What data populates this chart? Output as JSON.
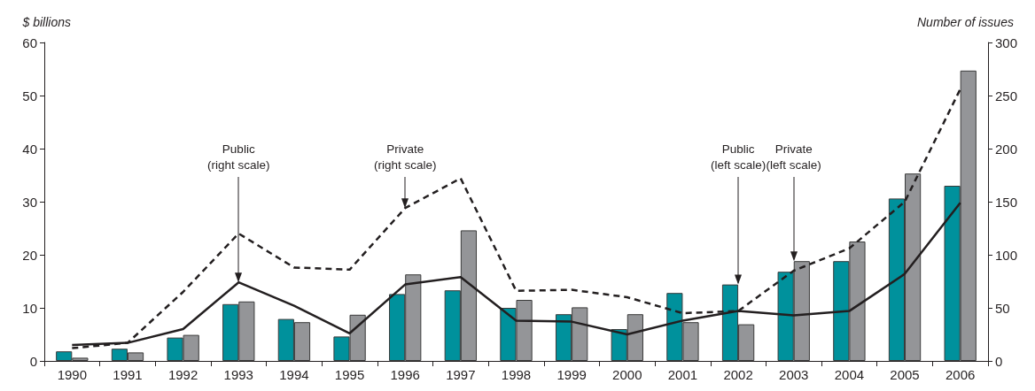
{
  "chart_data": {
    "type": "bar",
    "ylabel": "$ billions",
    "y2label": "Number of issues",
    "categories": [
      "1990",
      "1991",
      "1992",
      "1993",
      "1994",
      "1995",
      "1996",
      "1997",
      "1998",
      "1999",
      "2000",
      "2001",
      "2002",
      "2003",
      "2004",
      "2005",
      "2006"
    ],
    "series": [
      {
        "color": "#00919c",
        "values": [
          1.8,
          2.3,
          4.4,
          10.7,
          7.9,
          4.6,
          12.6,
          13.3,
          10.0,
          8.8,
          6.0,
          12.8,
          14.4,
          16.8,
          18.8,
          30.6,
          33.0
        ]
      },
      {
        "color": "#949598",
        "values": [
          0.6,
          1.6,
          4.9,
          11.2,
          7.3,
          8.7,
          16.3,
          24.6,
          11.5,
          10.1,
          8.8,
          7.3,
          6.9,
          18.8,
          22.5,
          35.3,
          54.7
        ]
      },
      {
        "type": "line",
        "axis": "y2",
        "color": "#231f20",
        "line_style": "solid",
        "values": [
          15,
          17,
          30,
          74,
          52,
          26,
          72,
          79,
          38,
          37,
          25,
          38,
          47,
          43,
          47,
          82,
          149
        ]
      },
      {
        "type": "line",
        "axis": "y2",
        "color": "#231f20",
        "line_style": "dashed",
        "values": [
          12,
          17,
          65,
          120,
          88,
          86,
          144,
          172,
          66,
          67,
          60,
          45,
          47,
          85,
          106,
          150,
          256
        ]
      }
    ],
    "ylim": [
      0,
      60
    ],
    "yticks": [
      0,
      10,
      20,
      30,
      40,
      50,
      60
    ],
    "y2lim": [
      0,
      300
    ],
    "y2ticks": [
      0,
      50,
      100,
      150,
      200,
      250,
      300
    ],
    "grid": false,
    "marker": "none",
    "annotations": [
      {
        "text": "Public\n(right scale)",
        "x": "1993",
        "y": 14.8
      },
      {
        "text": "Private\n(right scale)",
        "x": "1996",
        "y": 28.8
      },
      {
        "text": "Public\n(left scale)",
        "x": "2002",
        "y": 14.4
      },
      {
        "text": "Private\n(left scale)",
        "x": "2003",
        "y": 18.8
      }
    ]
  }
}
